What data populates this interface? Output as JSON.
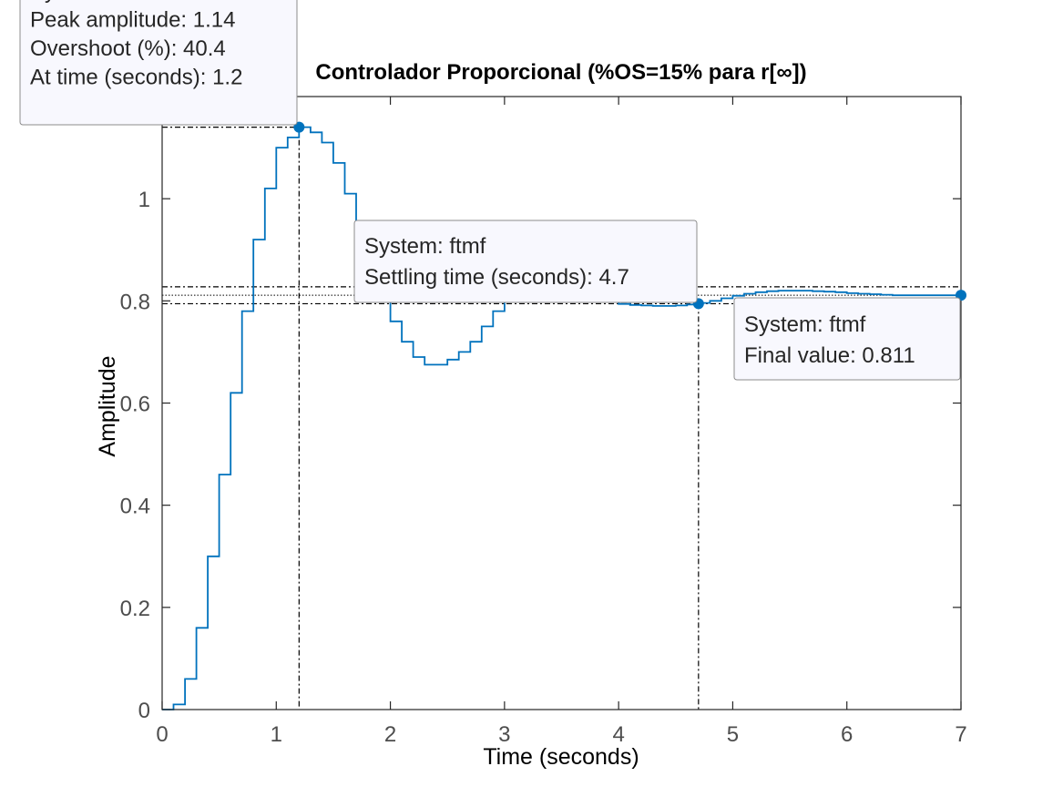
{
  "chart_data": {
    "type": "line",
    "title": "Controlador Proporcional (%OS=15% para r[∞])",
    "xlabel": "Time (seconds)",
    "ylabel": "Amplitude",
    "xlim": [
      0,
      7
    ],
    "ylim": [
      0,
      1.2
    ],
    "xticks": [
      0,
      1,
      2,
      3,
      4,
      5,
      6,
      7
    ],
    "yticks": [
      0,
      0.2,
      0.4,
      0.6,
      0.8,
      1
    ],
    "xtick_labels": [
      "0",
      "1",
      "2",
      "3",
      "4",
      "5",
      "6",
      "7"
    ],
    "ytick_labels": [
      "0",
      "0.2",
      "0.4",
      "0.6",
      "0.8",
      "1"
    ],
    "grid": false,
    "line_color": "#0072BD",
    "series": [
      {
        "style": "step",
        "x": [
          0,
          0.1,
          0.2,
          0.3,
          0.4,
          0.5,
          0.6,
          0.7,
          0.8,
          0.9,
          1.0,
          1.1,
          1.2,
          1.3,
          1.4,
          1.5,
          1.6,
          1.7,
          1.8,
          1.9,
          2.0,
          2.1,
          2.2,
          2.3,
          2.4,
          2.5,
          2.6,
          2.7,
          2.8,
          2.9,
          3.0,
          3.1,
          3.2,
          3.3,
          3.4,
          3.5,
          3.6,
          3.7,
          3.8,
          3.9,
          4.0,
          4.1,
          4.2,
          4.3,
          4.4,
          4.5,
          4.6,
          4.7,
          4.8,
          4.9,
          5.0,
          5.1,
          5.2,
          5.3,
          5.4,
          5.5,
          5.6,
          5.7,
          5.8,
          5.9,
          6.0,
          6.1,
          6.2,
          6.3,
          6.4,
          6.5,
          6.6,
          6.7,
          6.8,
          6.9,
          7.0
        ],
        "y": [
          0,
          0.01,
          0.06,
          0.16,
          0.3,
          0.46,
          0.62,
          0.78,
          0.92,
          1.02,
          1.1,
          1.12,
          1.14,
          1.13,
          1.11,
          1.07,
          1.01,
          0.94,
          0.88,
          0.82,
          0.76,
          0.72,
          0.69,
          0.675,
          0.675,
          0.685,
          0.7,
          0.72,
          0.75,
          0.78,
          0.8,
          0.81,
          0.815,
          0.818,
          0.817,
          0.815,
          0.812,
          0.808,
          0.803,
          0.798,
          0.794,
          0.792,
          0.791,
          0.79,
          0.79,
          0.791,
          0.793,
          0.796,
          0.8,
          0.805,
          0.81,
          0.814,
          0.817,
          0.819,
          0.82,
          0.82,
          0.82,
          0.819,
          0.818,
          0.817,
          0.815,
          0.814,
          0.813,
          0.812,
          0.811,
          0.811,
          0.811,
          0.811,
          0.811,
          0.811,
          0.811
        ]
      }
    ],
    "reference_lines": {
      "final_value": 0.811,
      "settling_band": [
        0.7945,
        0.8275
      ],
      "peak_amplitude": 1.14,
      "peak_time": 1.2,
      "settling_time": 4.7
    },
    "datatips": [
      {
        "anchor": [
          1.2,
          1.14
        ],
        "lines": [
          "System: ftmf",
          "Peak amplitude: 1.14",
          "Overshoot (%): 40.4",
          "At time (seconds): 1.2"
        ]
      },
      {
        "anchor": [
          4.7,
          0.7945
        ],
        "lines": [
          "System: ftmf",
          "Settling time (seconds): 4.7"
        ]
      },
      {
        "anchor": [
          7.0,
          0.811
        ],
        "lines": [
          "System: ftmf",
          "Final value: 0.811"
        ]
      }
    ]
  }
}
